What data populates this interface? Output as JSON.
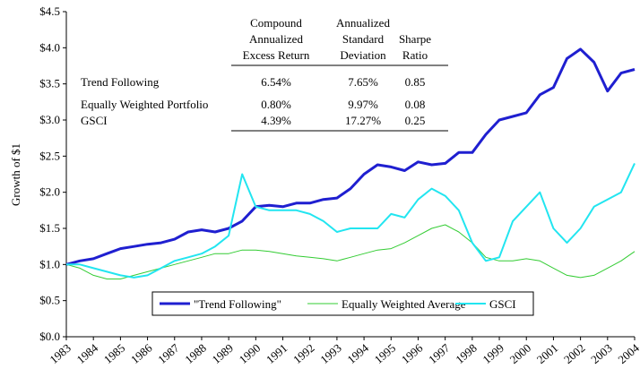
{
  "chart_data": {
    "type": "line",
    "y_label": "Growth of $1",
    "x": [
      1983,
      1983.5,
      1984,
      1984.5,
      1985,
      1985.5,
      1986,
      1986.5,
      1987,
      1987.5,
      1988,
      1988.5,
      1989,
      1989.5,
      1990,
      1990.5,
      1991,
      1991.5,
      1992,
      1992.5,
      1993,
      1993.5,
      1994,
      1994.5,
      1995,
      1995.5,
      1996,
      1996.5,
      1997,
      1997.5,
      1998,
      1998.5,
      1999,
      1999.5,
      2000,
      2000.5,
      2001,
      2001.5,
      2002,
      2002.5,
      2003,
      2003.5,
      2004
    ],
    "series": [
      {
        "name": "\"Trend Following\"",
        "color": "#1f1fd0",
        "width": 3,
        "values": [
          1.0,
          1.05,
          1.08,
          1.15,
          1.22,
          1.25,
          1.28,
          1.3,
          1.35,
          1.45,
          1.48,
          1.45,
          1.5,
          1.6,
          1.8,
          1.82,
          1.8,
          1.85,
          1.85,
          1.9,
          1.92,
          2.05,
          2.25,
          2.38,
          2.35,
          2.3,
          2.42,
          2.38,
          2.4,
          2.55,
          2.55,
          2.8,
          3.0,
          3.05,
          3.1,
          3.35,
          3.45,
          3.85,
          3.98,
          3.8,
          3.4,
          3.65,
          3.7
        ]
      },
      {
        "name": "Equally Weighted Average",
        "color": "#33cc33",
        "width": 1,
        "values": [
          1.0,
          0.95,
          0.85,
          0.8,
          0.8,
          0.85,
          0.9,
          0.95,
          1.0,
          1.05,
          1.1,
          1.15,
          1.15,
          1.2,
          1.2,
          1.18,
          1.15,
          1.12,
          1.1,
          1.08,
          1.05,
          1.1,
          1.15,
          1.2,
          1.22,
          1.3,
          1.4,
          1.5,
          1.55,
          1.45,
          1.3,
          1.1,
          1.05,
          1.05,
          1.08,
          1.05,
          0.95,
          0.85,
          0.82,
          0.85,
          0.95,
          1.05,
          1.18
        ]
      },
      {
        "name": "GSCI",
        "color": "#22e5f0",
        "width": 2,
        "values": [
          1.0,
          1.0,
          0.95,
          0.9,
          0.85,
          0.82,
          0.85,
          0.95,
          1.05,
          1.1,
          1.15,
          1.25,
          1.4,
          2.25,
          1.8,
          1.75,
          1.75,
          1.75,
          1.7,
          1.6,
          1.45,
          1.5,
          1.5,
          1.5,
          1.7,
          1.65,
          1.9,
          2.05,
          1.95,
          1.75,
          1.3,
          1.05,
          1.1,
          1.6,
          1.8,
          2.0,
          1.5,
          1.3,
          1.5,
          1.8,
          1.9,
          2.0,
          2.4
        ]
      }
    ],
    "xlim": [
      1983,
      2004
    ],
    "xticks": [
      1983,
      1984,
      1985,
      1986,
      1987,
      1988,
      1989,
      1990,
      1991,
      1992,
      1993,
      1994,
      1995,
      1996,
      1997,
      1998,
      1999,
      2000,
      2001,
      2002,
      2003,
      2004
    ],
    "ylim": [
      0,
      4.5
    ],
    "yticks": [
      {
        "value": 0,
        "label": "$0.0"
      },
      {
        "value": 0.5,
        "label": "$0.5"
      },
      {
        "value": 1,
        "label": "$1.0"
      },
      {
        "value": 1.5,
        "label": "$1.5"
      },
      {
        "value": 2,
        "label": "$2.0"
      },
      {
        "value": 2.5,
        "label": "$2.5"
      },
      {
        "value": 3,
        "label": "$3.0"
      },
      {
        "value": 3.5,
        "label": "$3.5"
      },
      {
        "value": 4,
        "label": "$4.0"
      },
      {
        "value": 4.5,
        "label": "$4.5"
      }
    ],
    "legend": "bottom",
    "table": {
      "columns": [
        [
          "Compound",
          "Annualized",
          "Excess Return"
        ],
        [
          "Annualized",
          "Standard",
          "Deviation"
        ],
        [
          "Sharpe",
          "Ratio"
        ]
      ],
      "rows": [
        [
          "Trend Following",
          "6.54%",
          "7.65%",
          "0.85"
        ],
        [
          "Equally Weighted Portfolio",
          "0.80%",
          "9.97%",
          "0.08"
        ],
        [
          "GSCI",
          "4.39%",
          "17.27%",
          "0.25"
        ]
      ]
    }
  }
}
